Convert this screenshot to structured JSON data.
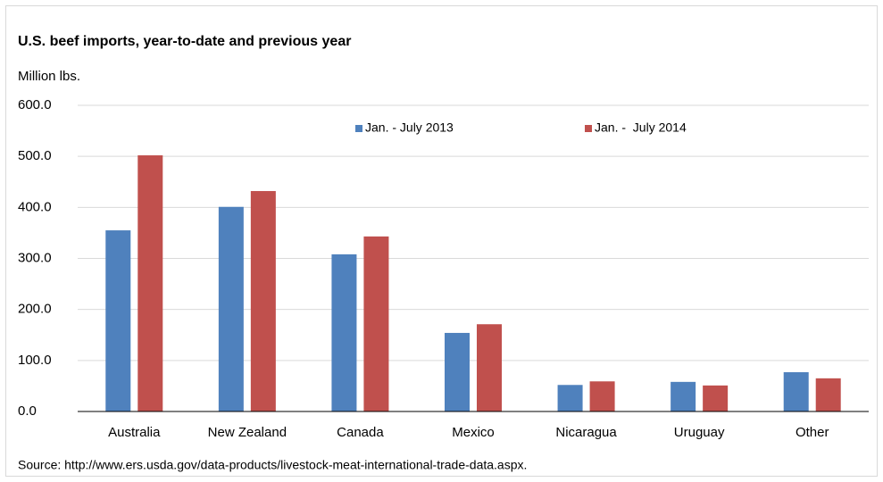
{
  "chart_data": {
    "type": "bar",
    "title": "U.S. beef imports, year-to-date and previous year",
    "y_label": "Million lbs.",
    "source": "Source: http://www.ers.usda.gov/data-products/livestock-meat-international-trade-data.aspx.",
    "categories": [
      "Australia",
      "New Zealand",
      "Canada",
      "Mexico",
      "Nicaragua",
      "Uruguay",
      "Other"
    ],
    "series": [
      {
        "name": "Jan. - July 2013",
        "color": "#4f81bd",
        "values": [
          355,
          401,
          308,
          154,
          52,
          58,
          77
        ]
      },
      {
        "name": "Jan. -  July 2014",
        "color": "#c0504d",
        "values": [
          502,
          432,
          343,
          171,
          59,
          51,
          65
        ]
      }
    ],
    "ylim": [
      0,
      600
    ],
    "yticks": [
      {
        "value": 0,
        "label": "0.0"
      },
      {
        "value": 100,
        "label": "100.0"
      },
      {
        "value": 200,
        "label": "200.0"
      },
      {
        "value": 300,
        "label": "300.0"
      },
      {
        "value": 400,
        "label": "400.0"
      },
      {
        "value": 500,
        "label": "500.0"
      },
      {
        "value": 600,
        "label": "600.0"
      }
    ],
    "grid": true,
    "legend_position": "top"
  }
}
